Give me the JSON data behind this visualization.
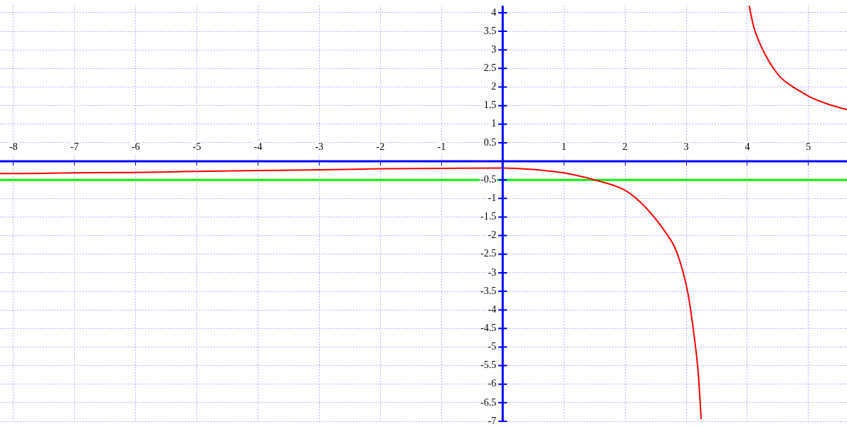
{
  "chart_data": {
    "type": "line",
    "series": [
      {
        "color": "#ff0000",
        "x": [
          -8.22,
          -8,
          -7,
          -6,
          -5,
          -4,
          -3,
          -2,
          -1,
          0,
          0.5,
          1,
          1.5,
          2,
          2.25,
          2.5,
          2.65,
          2.8,
          2.9,
          3,
          3.05,
          3.1,
          3.15,
          3.2,
          3.245
        ],
        "values": [
          -0.33,
          -0.33,
          -0.31,
          -0.3,
          -0.27,
          -0.25,
          -0.23,
          -0.2,
          -0.19,
          -0.18,
          -0.22,
          -0.31,
          -0.5,
          -0.78,
          -1.1,
          -1.55,
          -1.88,
          -2.27,
          -2.7,
          -3.32,
          -3.75,
          -4.32,
          -4.95,
          -5.75,
          -6.94
        ]
      },
      {
        "color": "#ff0000",
        "x": [
          4.03,
          4.1,
          4.18,
          4.3,
          4.42,
          4.55,
          4.73,
          4.9,
          5.04,
          5.3,
          5.63
        ],
        "values": [
          4.19,
          3.65,
          3.27,
          2.85,
          2.52,
          2.25,
          2.02,
          1.85,
          1.72,
          1.55,
          1.39
        ]
      }
    ],
    "xlim": [
      -8.22,
      5.63
    ],
    "xticks": [
      -8,
      -7,
      -6,
      -5,
      -4,
      -3,
      -2,
      -1,
      {
        "value": 0,
        "label": null
      },
      1,
      2,
      3,
      4,
      5
    ],
    "ylim": [
      -7,
      4.19
    ],
    "yticks": [
      -7,
      -6.5,
      -6,
      -5.5,
      -5,
      -4.5,
      -4,
      -3.5,
      -3,
      -2.5,
      -2,
      -1.5,
      -1,
      -0.5,
      {
        "value": 0,
        "label": null
      },
      0.5,
      1,
      1.5,
      2,
      2.5,
      3,
      3.5,
      4
    ],
    "ref_lines": [
      {
        "axis": "y",
        "value": -0.5,
        "color": "#00ff00"
      }
    ],
    "grid": true,
    "legend": false,
    "marker": "none",
    "line_style": "solid"
  }
}
